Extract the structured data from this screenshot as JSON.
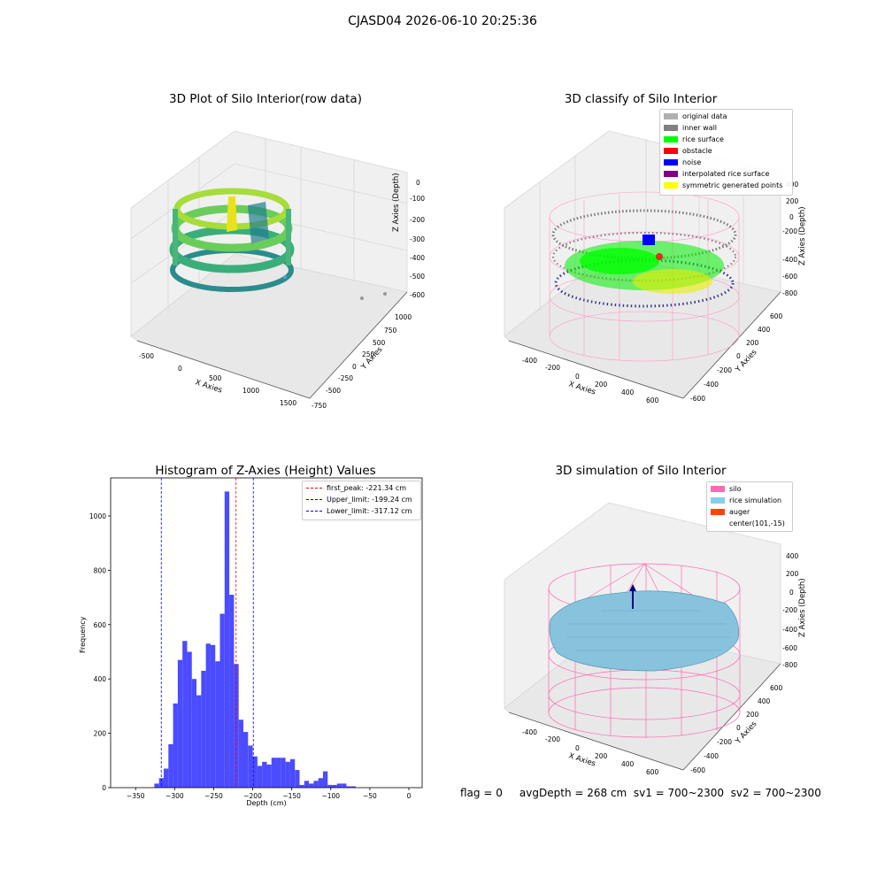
{
  "suptitle": "CJASD04 2026-06-10 20:25:36",
  "footer": "flag = 0     avgDepth = 268 cm  sv1 = 700~2300  sv2 = 700~2300",
  "plot1": {
    "title": "3D Plot of Silo Interior(row data)",
    "xlabel": "X Axies",
    "ylabel": "Y Axies",
    "zlabel": "Z Axies (Depth)",
    "xticks": [
      "-500",
      "0",
      "500",
      "1000",
      "1500"
    ],
    "yticks": [
      "-750",
      "-500",
      "-250",
      "0",
      "250",
      "500",
      "750",
      "1000"
    ],
    "zticks": [
      "0",
      "-100",
      "-200",
      "-300",
      "-400",
      "-500",
      "-600"
    ]
  },
  "plot2": {
    "title": "3D classify of Silo Interior",
    "xlabel": "X Axies",
    "ylabel": "Y Axies",
    "zlabel": "Z Axies (Depth)",
    "xticks": [
      "-400",
      "-200",
      "0",
      "200",
      "400",
      "600"
    ],
    "yticks": [
      "-600",
      "-400",
      "-200",
      "0",
      "200",
      "400",
      "600"
    ],
    "zticks": [
      "200",
      "0",
      "-200",
      "-400",
      "-600",
      "-800"
    ],
    "zticks_top": "400",
    "legend": [
      {
        "label": "original data",
        "color": "#b0b0b0"
      },
      {
        "label": "inner wall",
        "color": "#808080"
      },
      {
        "label": "rice surface",
        "color": "#00ff00"
      },
      {
        "label": "obstacle",
        "color": "#ff0000"
      },
      {
        "label": "noise",
        "color": "#0000ff"
      },
      {
        "label": "interpolated rice surface",
        "color": "#800080"
      },
      {
        "label": "symmetric generated points",
        "color": "#ffff00"
      }
    ]
  },
  "plot4": {
    "title": "3D simulation of Silo Interior",
    "xlabel": "X Axies",
    "ylabel": "Y Axies",
    "zlabel": "Z Axies (Depth)",
    "xticks": [
      "-400",
      "-200",
      "0",
      "200",
      "400",
      "600"
    ],
    "yticks": [
      "-600",
      "-400",
      "-200",
      "0",
      "200",
      "400",
      "600"
    ],
    "zticks": [
      "400",
      "200",
      "0",
      "-200",
      "-400",
      "-600",
      "-800"
    ],
    "legend": [
      {
        "label": "silo",
        "color": "#ff69b4"
      },
      {
        "label": "rice simulation",
        "color": "#87ceeb"
      },
      {
        "label": "auger",
        "color": "#ff4500"
      },
      {
        "label": "center(101,-15)",
        "color": ""
      }
    ]
  },
  "chart_data": {
    "type": "bar",
    "title": "Histogram of Z-Axies (Height) Values",
    "xlabel": "Depth (cm)",
    "ylabel": "Frequency",
    "xlim": [
      -382,
      17
    ],
    "ylim": [
      0,
      1140
    ],
    "xticks": [
      -350,
      -300,
      -250,
      -200,
      -150,
      -100,
      -50,
      0
    ],
    "yticks": [
      0,
      200,
      400,
      600,
      800,
      1000
    ],
    "bar_color": "#4b4bff",
    "bins_start": -326,
    "bin_width": 6.0,
    "values": [
      15,
      35,
      70,
      160,
      310,
      470,
      540,
      500,
      400,
      340,
      430,
      530,
      525,
      465,
      640,
      1090,
      710,
      455,
      250,
      205,
      155,
      115,
      80,
      95,
      85,
      110,
      110,
      110,
      95,
      105,
      65,
      10,
      25,
      15,
      25,
      35,
      60,
      10,
      10,
      15,
      15,
      5,
      5
    ],
    "lines": [
      {
        "label": "first_peak: -221.34 cm",
        "x": -221.34,
        "color": "#ff0000"
      },
      {
        "label": "Upper_limit: -199.24 cm",
        "x": -199.24,
        "color": "#0000ff"
      },
      {
        "label": "Lower_limit: -317.12 cm",
        "x": -317.12,
        "color": "#0000ff"
      }
    ],
    "legend_position": "top-right"
  }
}
